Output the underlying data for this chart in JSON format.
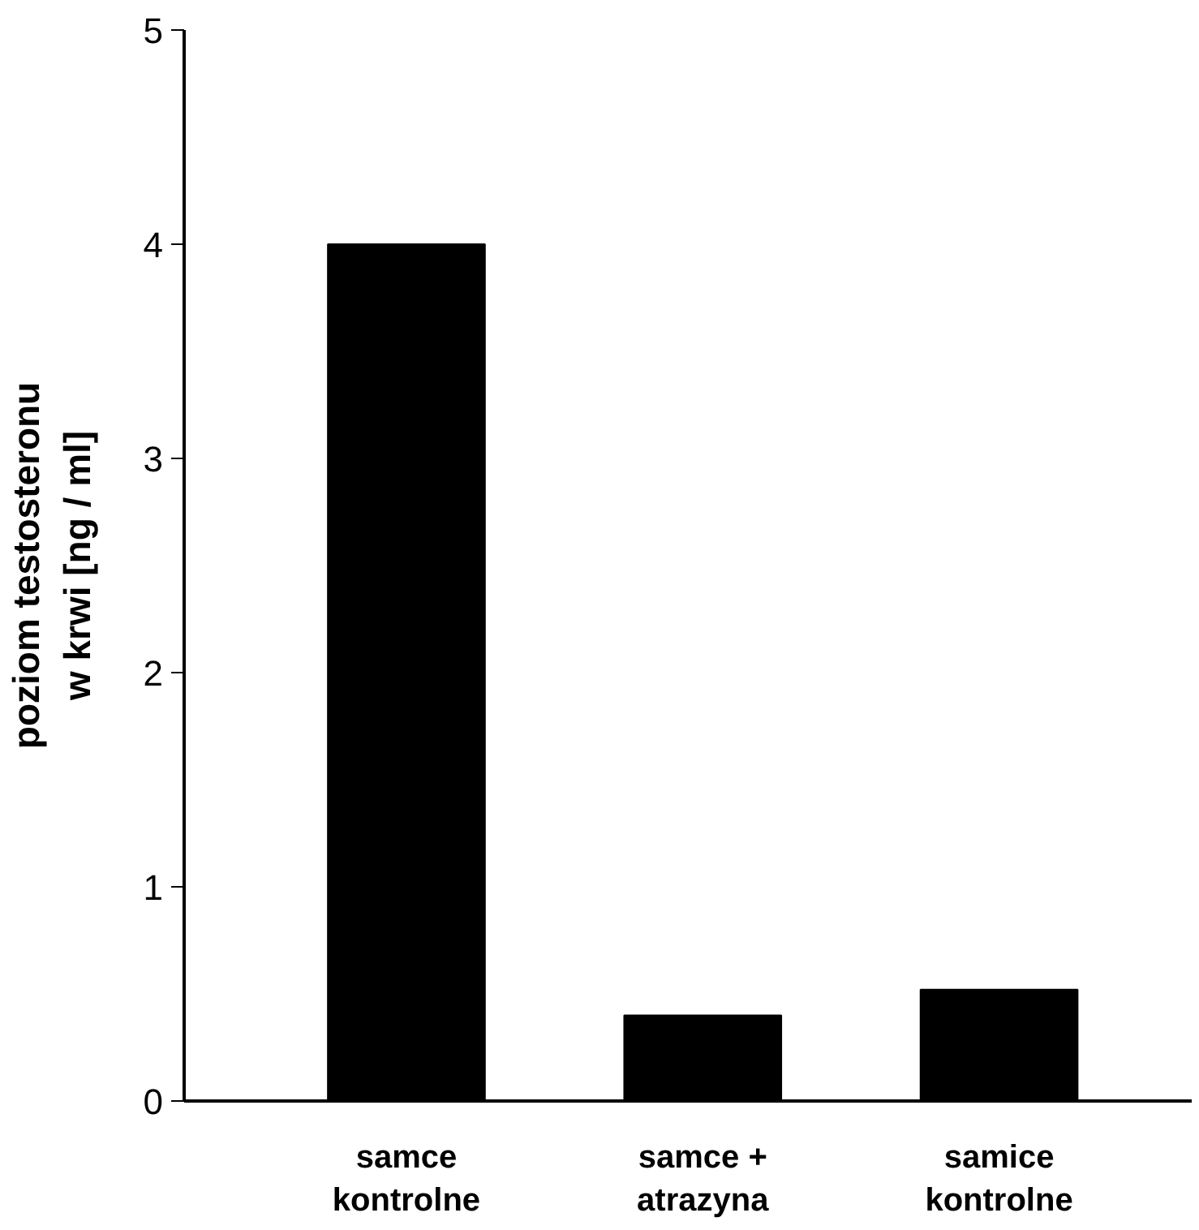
{
  "chart_data": {
    "type": "bar",
    "ylabel": "poziom testosteronu\nw krwi [ng / ml]",
    "categories": [
      "samce\nkontrolne",
      "samce +\natrazyna",
      "samice\nkontrolne"
    ],
    "values": [
      4.0,
      0.4,
      0.52
    ],
    "color": "#000000",
    "ylim": [
      0,
      5
    ],
    "yticks": [
      0,
      1,
      2,
      3,
      4,
      5
    ],
    "grid": false
  }
}
